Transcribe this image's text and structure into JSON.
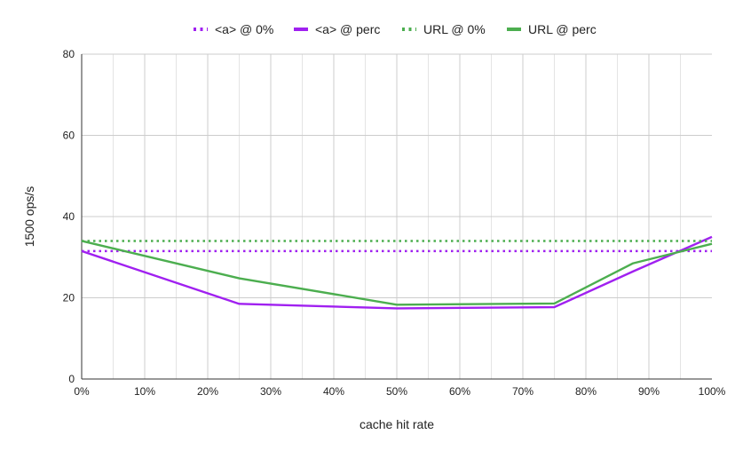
{
  "chart_data": {
    "type": "line",
    "title": "",
    "xlabel": "cache hit rate",
    "ylabel": "1500 ops/s",
    "xlim": [
      0,
      100
    ],
    "ylim": [
      0,
      80
    ],
    "x_ticks": [
      "0%",
      "10%",
      "20%",
      "30%",
      "40%",
      "50%",
      "60%",
      "70%",
      "80%",
      "90%",
      "100%"
    ],
    "y_ticks": [
      "0",
      "20",
      "40",
      "60",
      "80"
    ],
    "grid": true,
    "legend_position": "top",
    "series": [
      {
        "name": "<a> @ 0%",
        "color": "#a020f0",
        "style": "dotted",
        "x": [
          0,
          100
        ],
        "y": [
          31.5,
          31.5
        ]
      },
      {
        "name": "<a> @ perc",
        "color": "#a020f0",
        "style": "solid",
        "x": [
          0,
          25,
          50,
          75,
          87.5,
          100
        ],
        "y": [
          31.5,
          18.5,
          17.4,
          17.7,
          26.5,
          35
        ]
      },
      {
        "name": "URL @ 0%",
        "color": "#4cae4f",
        "style": "dotted",
        "x": [
          0,
          100
        ],
        "y": [
          34,
          34
        ]
      },
      {
        "name": "URL @ perc",
        "color": "#4cae4f",
        "style": "solid",
        "x": [
          0,
          25,
          50,
          75,
          87.5,
          100
        ],
        "y": [
          34,
          24.8,
          18.3,
          18.6,
          28.5,
          33.3
        ]
      }
    ]
  }
}
